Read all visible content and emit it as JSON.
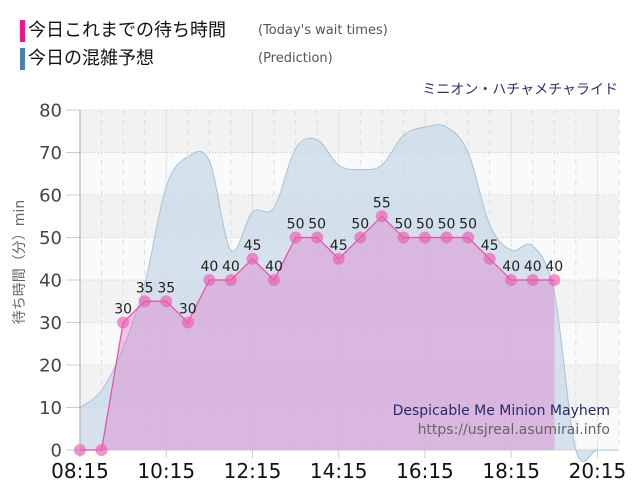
{
  "legend": {
    "items": [
      {
        "label": "今日これまでの待ち時間",
        "sublabel": "(Today's wait times)",
        "color": "#f0158c"
      },
      {
        "label": "今日の混雑予想",
        "sublabel": "(Prediction)",
        "color": "#4b82b4"
      }
    ]
  },
  "header": {
    "attraction_name": "ミニオン・ハチャメチャライド"
  },
  "annotation": {
    "attraction_name_en": "Despicable Me Minion Mayhem",
    "source": "https://usjreal.asumirai.info"
  },
  "colors": {
    "actual_line": "#e24fa6",
    "actual_fill": "rgba(225,120,200,0.4)",
    "actual_marker": "rgba(236,90,175,0.65)",
    "prediction_line": "#a7c2d8",
    "prediction_fill": "rgba(200,218,232,0.75)",
    "band_dark": "#f2f2f2",
    "band_light": "#fafafa"
  },
  "chart_data": {
    "type": "area",
    "title": "ミニオン・ハチャメチャライド",
    "xlabel": "",
    "ylabel": "待ち時間（分）min",
    "ylim": [
      0,
      80
    ],
    "yticks": [
      0,
      10,
      20,
      30,
      40,
      50,
      60,
      70,
      80
    ],
    "xticks": [
      "08:15",
      "10:15",
      "12:15",
      "14:15",
      "16:15",
      "18:15",
      "20:15"
    ],
    "x": [
      "08:15",
      "08:45",
      "09:15",
      "09:45",
      "10:15",
      "10:45",
      "11:15",
      "11:45",
      "12:15",
      "12:45",
      "13:15",
      "13:45",
      "14:15",
      "14:45",
      "15:15",
      "15:45",
      "16:15",
      "16:45",
      "17:15",
      "17:45",
      "18:15",
      "18:45",
      "19:15",
      "19:45",
      "20:15",
      "20:45"
    ],
    "series": [
      {
        "name": "今日これまでの待ち時間 (Today's wait times)",
        "style": "line+markers+area",
        "data_labels": true,
        "values": [
          0,
          0,
          30,
          35,
          35,
          30,
          40,
          40,
          45,
          40,
          50,
          50,
          45,
          50,
          55,
          50,
          50,
          50,
          50,
          45,
          40,
          40,
          40,
          null,
          null,
          null
        ]
      },
      {
        "name": "今日の混雑予想 (Prediction)",
        "style": "areaspline",
        "data_labels": false,
        "values": [
          10,
          14,
          24,
          39,
          62,
          69,
          68,
          47,
          56,
          57,
          71,
          73,
          67,
          66,
          67,
          74,
          76,
          76,
          70,
          53,
          47,
          48,
          37,
          0,
          0,
          0
        ]
      }
    ],
    "grid": true,
    "legend_position": "top-left",
    "annotations": [
      "Despicable Me Minion Mayhem",
      "https://usjreal.asumirai.info"
    ]
  }
}
